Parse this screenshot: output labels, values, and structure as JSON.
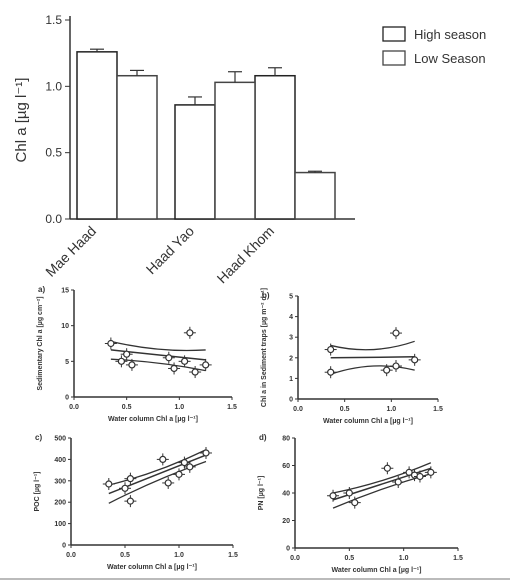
{
  "chart_data": [
    {
      "type": "bar",
      "panel": "top",
      "categories": [
        "Mae Haad",
        "Haad Yao",
        "Haad Khom"
      ],
      "series": [
        {
          "name": "High season",
          "values": [
            1.26,
            0.86,
            1.08
          ],
          "errors": [
            0.02,
            0.06,
            0.06
          ]
        },
        {
          "name": "Low Season",
          "values": [
            1.08,
            1.03,
            0.35
          ],
          "errors": [
            0.04,
            0.08,
            0.01
          ]
        }
      ],
      "ylabel": "Chl a [µg l⁻¹]",
      "yticks": [
        "0.0",
        "0.5",
        "1.0",
        "1.5"
      ],
      "ylim": [
        0,
        1.5
      ],
      "legend_position": "top-right"
    },
    {
      "type": "scatter",
      "panel": "a)",
      "xlabel": "Water column Chl a [µg l⁻¹]",
      "ylabel": "Sedimentary Chl a [µg cm⁻²]",
      "xlim": [
        0,
        1.5
      ],
      "ylim": [
        0,
        15
      ],
      "xticks": [
        "0.0",
        "0.5",
        "1.0",
        "1.5"
      ],
      "yticks": [
        "0",
        "5",
        "10",
        "15"
      ],
      "points": [
        [
          0.35,
          7.5
        ],
        [
          0.5,
          6.0
        ],
        [
          0.45,
          5.0
        ],
        [
          0.55,
          4.5
        ],
        [
          0.9,
          5.5
        ],
        [
          0.95,
          4.0
        ],
        [
          1.05,
          5.0
        ],
        [
          1.1,
          9.0
        ],
        [
          1.15,
          3.5
        ],
        [
          1.25,
          4.5
        ]
      ],
      "fit": [
        [
          0.35,
          6.6
        ],
        [
          1.25,
          5.2
        ]
      ],
      "ci_upper": [
        [
          0.35,
          7.8
        ],
        [
          0.8,
          6.2
        ],
        [
          1.25,
          6.6
        ]
      ],
      "ci_lower": [
        [
          0.35,
          5.3
        ],
        [
          0.8,
          5.0
        ],
        [
          1.25,
          3.7
        ]
      ]
    },
    {
      "type": "scatter",
      "panel": "b)",
      "xlabel": "Water column Chl a [µg l⁻¹]",
      "ylabel": "Chl a in Sediment traps [µg m⁻² d⁻¹]",
      "xlim": [
        0,
        1.5
      ],
      "ylim": [
        0,
        5
      ],
      "xticks": [
        "0.0",
        "0.5",
        "1.0",
        "1.5"
      ],
      "yticks": [
        "0",
        "1",
        "2",
        "3",
        "4",
        "5"
      ],
      "points": [
        [
          0.35,
          2.4
        ],
        [
          0.35,
          1.3
        ],
        [
          0.95,
          1.4
        ],
        [
          1.05,
          1.6
        ],
        [
          1.05,
          3.2
        ],
        [
          1.25,
          1.9
        ]
      ],
      "fit": [
        [
          0.35,
          2.0
        ],
        [
          1.25,
          2.05
        ]
      ],
      "ci_upper": [
        [
          0.35,
          2.6
        ],
        [
          0.8,
          2.1
        ],
        [
          1.25,
          2.8
        ]
      ],
      "ci_lower": [
        [
          0.35,
          1.2
        ],
        [
          0.8,
          1.9
        ],
        [
          1.25,
          1.4
        ]
      ]
    },
    {
      "type": "scatter",
      "panel": "c)",
      "xlabel": "Water column Chl a [µg l⁻¹]",
      "ylabel": "POC [µg l⁻¹]",
      "xlim": [
        0,
        1.5
      ],
      "ylim": [
        0,
        500
      ],
      "xticks": [
        "0.0",
        "0.5",
        "1.0",
        "1.5"
      ],
      "yticks": [
        "0",
        "100",
        "200",
        "300",
        "400",
        "500"
      ],
      "points": [
        [
          0.35,
          285
        ],
        [
          0.5,
          265
        ],
        [
          0.55,
          205
        ],
        [
          0.55,
          310
        ],
        [
          0.85,
          400
        ],
        [
          0.9,
          290
        ],
        [
          1.0,
          330
        ],
        [
          1.05,
          385
        ],
        [
          1.1,
          365
        ],
        [
          1.25,
          430
        ]
      ],
      "fit": [
        [
          0.35,
          240
        ],
        [
          1.25,
          420
        ]
      ],
      "ci_upper": [
        [
          0.35,
          280
        ],
        [
          0.8,
          335
        ],
        [
          1.25,
          445
        ]
      ],
      "ci_lower": [
        [
          0.35,
          195
        ],
        [
          0.8,
          310
        ],
        [
          1.25,
          390
        ]
      ]
    },
    {
      "type": "scatter",
      "panel": "d)",
      "xlabel": "Water column Chl a [µg l⁻¹]",
      "ylabel": "PN [µg l⁻¹]",
      "xlim": [
        0,
        1.5
      ],
      "ylim": [
        0,
        80
      ],
      "xticks": [
        "0.0",
        "0.5",
        "1.0",
        "1.5"
      ],
      "yticks": [
        "0",
        "20",
        "40",
        "60",
        "80"
      ],
      "points": [
        [
          0.35,
          38
        ],
        [
          0.5,
          40
        ],
        [
          0.55,
          33
        ],
        [
          0.85,
          58
        ],
        [
          0.95,
          48
        ],
        [
          1.05,
          55
        ],
        [
          1.1,
          53
        ],
        [
          1.15,
          52
        ],
        [
          1.25,
          55
        ]
      ],
      "fit": [
        [
          0.35,
          35
        ],
        [
          1.25,
          58
        ]
      ],
      "ci_upper": [
        [
          0.35,
          40
        ],
        [
          0.8,
          47
        ],
        [
          1.25,
          62
        ]
      ],
      "ci_lower": [
        [
          0.35,
          29
        ],
        [
          0.8,
          44
        ],
        [
          1.25,
          54
        ]
      ]
    }
  ]
}
